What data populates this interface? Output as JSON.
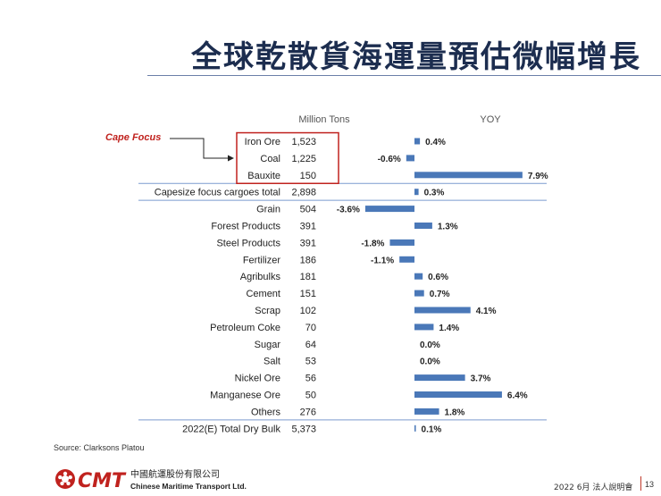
{
  "title": "全球乾散貨海運量預估微幅增長",
  "source": "Source: Clarksons Platou",
  "logo": {
    "brand": "CMT",
    "name_zh": "中國航運股份有限公司",
    "name_en": "Chinese Maritime Transport Ltd."
  },
  "footer": {
    "text": "2022  6月 法人說明會",
    "page": "13"
  },
  "annotation": {
    "label": "Cape Focus"
  },
  "chart_data": {
    "type": "bar",
    "orientation": "horizontal",
    "columns": {
      "tons_header": "Million Tons",
      "yoy_header": "YOY"
    },
    "categories": [
      "Iron Ore",
      "Coal",
      "Bauxite",
      "Capesize focus cargoes total",
      "Grain",
      "Forest Products",
      "Steel Products",
      "Fertilizer",
      "Agribulks",
      "Cement",
      "Scrap",
      "Petroleum Coke",
      "Sugar",
      "Salt",
      "Nickel Ore",
      "Manganese Ore",
      "Others",
      "2022(E) Total Dry Bulk"
    ],
    "tons": [
      "1,523",
      "1,225",
      "150",
      "2,898",
      "504",
      "391",
      "391",
      "186",
      "181",
      "151",
      "102",
      "70",
      "64",
      "53",
      "56",
      "50",
      "276",
      "5,373"
    ],
    "series": [
      {
        "name": "YOY",
        "values": [
          0.4,
          -0.6,
          7.9,
          0.3,
          -3.6,
          1.3,
          -1.8,
          -1.1,
          0.6,
          0.7,
          4.1,
          1.4,
          0.0,
          0.0,
          3.7,
          6.4,
          1.8,
          0.1
        ],
        "labels": [
          "0.4%",
          "-0.6%",
          "7.9%",
          "0.3%",
          "-3.6%",
          "1.3%",
          "-1.8%",
          "-1.1%",
          "0.6%",
          "0.7%",
          "4.1%",
          "1.4%",
          "0.0%",
          "0.0%",
          "3.7%",
          "6.4%",
          "1.8%",
          "0.1%"
        ]
      }
    ],
    "bar_color": "#4a78b8",
    "highlight_color": "#c0221e"
  }
}
